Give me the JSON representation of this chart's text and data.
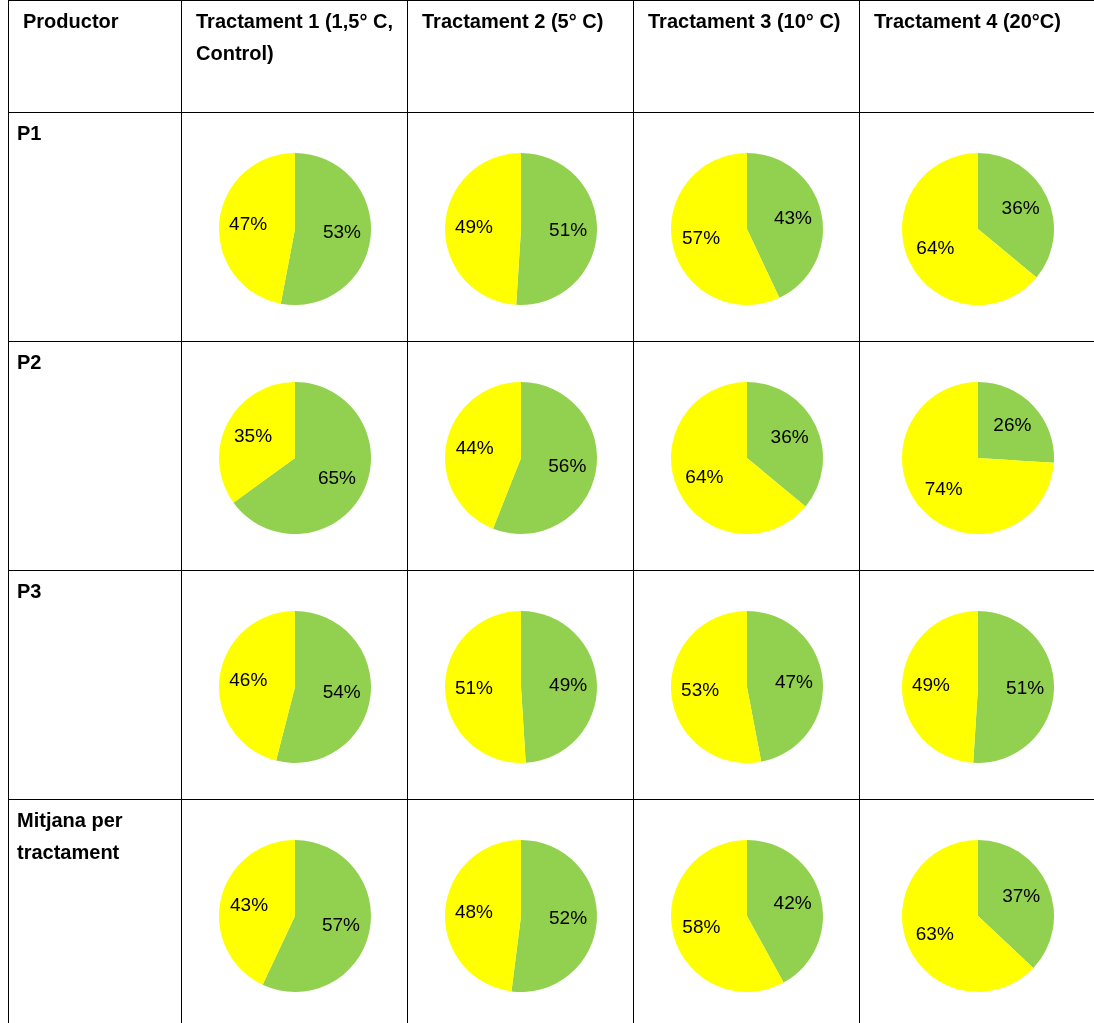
{
  "chart_data": [
    {
      "type": "pie",
      "categories": [
        null,
        null
      ],
      "values": [
        53,
        47
      ],
      "colors": [
        "#92d050",
        "#ffff00"
      ],
      "value_labels": [
        "53%",
        "47%"
      ]
    },
    {
      "type": "pie",
      "categories": [
        null,
        null
      ],
      "values": [
        51,
        49
      ],
      "colors": [
        "#92d050",
        "#ffff00"
      ],
      "value_labels": [
        "51%",
        "49%"
      ]
    },
    {
      "type": "pie",
      "categories": [
        null,
        null
      ],
      "values": [
        43,
        57
      ],
      "colors": [
        "#92d050",
        "#ffff00"
      ],
      "value_labels": [
        "43%",
        "57%"
      ]
    },
    {
      "type": "pie",
      "categories": [
        null,
        null
      ],
      "values": [
        36,
        64
      ],
      "colors": [
        "#92d050",
        "#ffff00"
      ],
      "value_labels": [
        "36%",
        "64%"
      ]
    },
    {
      "type": "pie",
      "categories": [
        null,
        null
      ],
      "values": [
        65,
        35
      ],
      "colors": [
        "#92d050",
        "#ffff00"
      ],
      "value_labels": [
        "65%",
        "35%"
      ]
    },
    {
      "type": "pie",
      "categories": [
        null,
        null
      ],
      "values": [
        56,
        44
      ],
      "colors": [
        "#92d050",
        "#ffff00"
      ],
      "value_labels": [
        "56%",
        "44%"
      ]
    },
    {
      "type": "pie",
      "categories": [
        null,
        null
      ],
      "values": [
        36,
        64
      ],
      "colors": [
        "#92d050",
        "#ffff00"
      ],
      "value_labels": [
        "36%",
        "64%"
      ]
    },
    {
      "type": "pie",
      "categories": [
        null,
        null
      ],
      "values": [
        26,
        74
      ],
      "colors": [
        "#92d050",
        "#ffff00"
      ],
      "value_labels": [
        "26%",
        "74%"
      ]
    },
    {
      "type": "pie",
      "categories": [
        null,
        null
      ],
      "values": [
        54,
        46
      ],
      "colors": [
        "#92d050",
        "#ffff00"
      ],
      "value_labels": [
        "54%",
        "46%"
      ]
    },
    {
      "type": "pie",
      "categories": [
        null,
        null
      ],
      "values": [
        49,
        51
      ],
      "colors": [
        "#92d050",
        "#ffff00"
      ],
      "value_labels": [
        "49%",
        "51%"
      ]
    },
    {
      "type": "pie",
      "categories": [
        null,
        null
      ],
      "values": [
        47,
        53
      ],
      "colors": [
        "#92d050",
        "#ffff00"
      ],
      "value_labels": [
        "47%",
        "53%"
      ]
    },
    {
      "type": "pie",
      "categories": [
        null,
        null
      ],
      "values": [
        51,
        49
      ],
      "colors": [
        "#92d050",
        "#ffff00"
      ],
      "value_labels": [
        "51%",
        "49%"
      ]
    },
    {
      "type": "pie",
      "categories": [
        null,
        null
      ],
      "values": [
        57,
        43
      ],
      "colors": [
        "#92d050",
        "#ffff00"
      ],
      "value_labels": [
        "57%",
        "43%"
      ]
    },
    {
      "type": "pie",
      "categories": [
        null,
        null
      ],
      "values": [
        52,
        48
      ],
      "colors": [
        "#92d050",
        "#ffff00"
      ],
      "value_labels": [
        "52%",
        "48%"
      ]
    },
    {
      "type": "pie",
      "categories": [
        null,
        null
      ],
      "values": [
        42,
        58
      ],
      "colors": [
        "#92d050",
        "#ffff00"
      ],
      "value_labels": [
        "42%",
        "58%"
      ]
    },
    {
      "type": "pie",
      "categories": [
        null,
        null
      ],
      "values": [
        37,
        63
      ],
      "colors": [
        "#92d050",
        "#ffff00"
      ],
      "value_labels": [
        "37%",
        "63%"
      ]
    },
    {
      "type": "other",
      "title": "Productor",
      "categories": [
        "Tractament 1 (1,5° C, Control)",
        "Tractament 2 (5° C)",
        "Tractament 3 (10° C)",
        "Tractament 4 (20°C)"
      ],
      "y_categories": [
        "P1",
        "P2",
        "P3",
        "Mitjana per tractament"
      ]
    }
  ]
}
